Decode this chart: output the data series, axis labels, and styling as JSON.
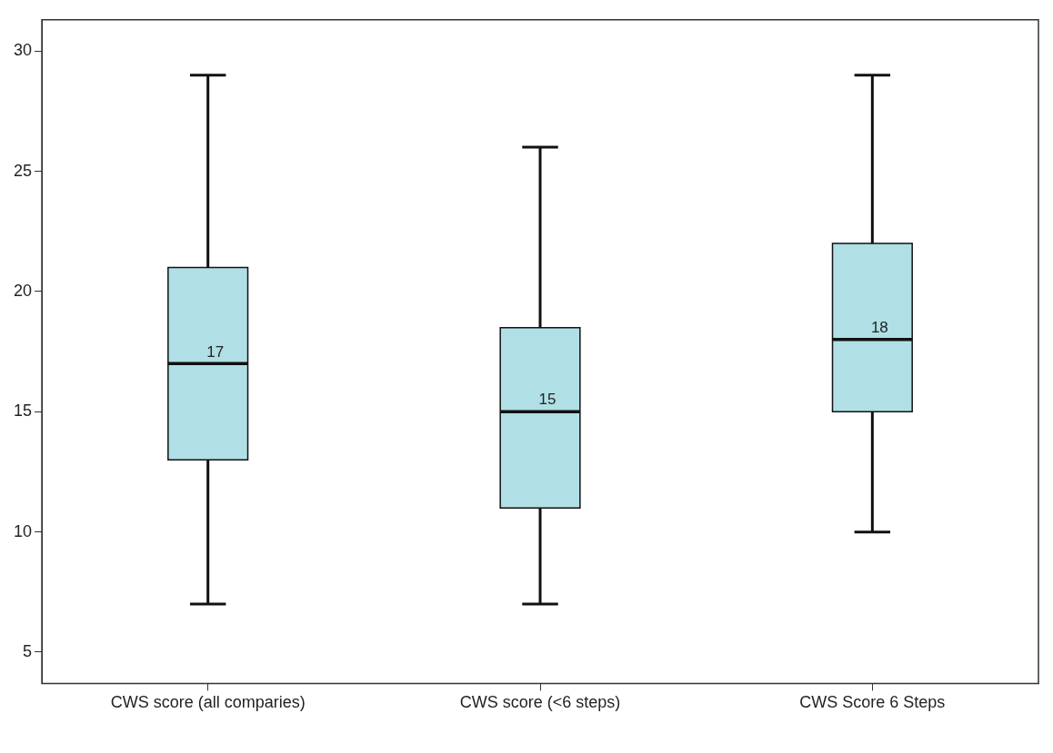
{
  "chart_data": {
    "type": "box",
    "categories": [
      "CWS score (all comparies)",
      "CWS score (<6 steps)",
      "CWS Score 6 Steps"
    ],
    "boxes": [
      {
        "low": 7,
        "q1": 13,
        "median": 17,
        "q3": 21,
        "high": 29
      },
      {
        "low": 7,
        "q1": 11,
        "median": 15,
        "q3": 18.5,
        "high": 26
      },
      {
        "low": 10,
        "q1": 15,
        "median": 18,
        "q3": 22,
        "high": 29
      }
    ],
    "color": "#b0e0e6",
    "ylim": [
      3.7,
      31.3
    ],
    "yticks": [
      5,
      10,
      15,
      20,
      25,
      30
    ],
    "annotations": [
      {
        "text": "17",
        "x": "CWS score (all comparies)",
        "y": 17
      },
      {
        "text": "15",
        "x": "CWS score (<6 steps)",
        "y": 15
      },
      {
        "text": "18",
        "x": "CWS Score 6 Steps",
        "y": 18
      }
    ]
  }
}
